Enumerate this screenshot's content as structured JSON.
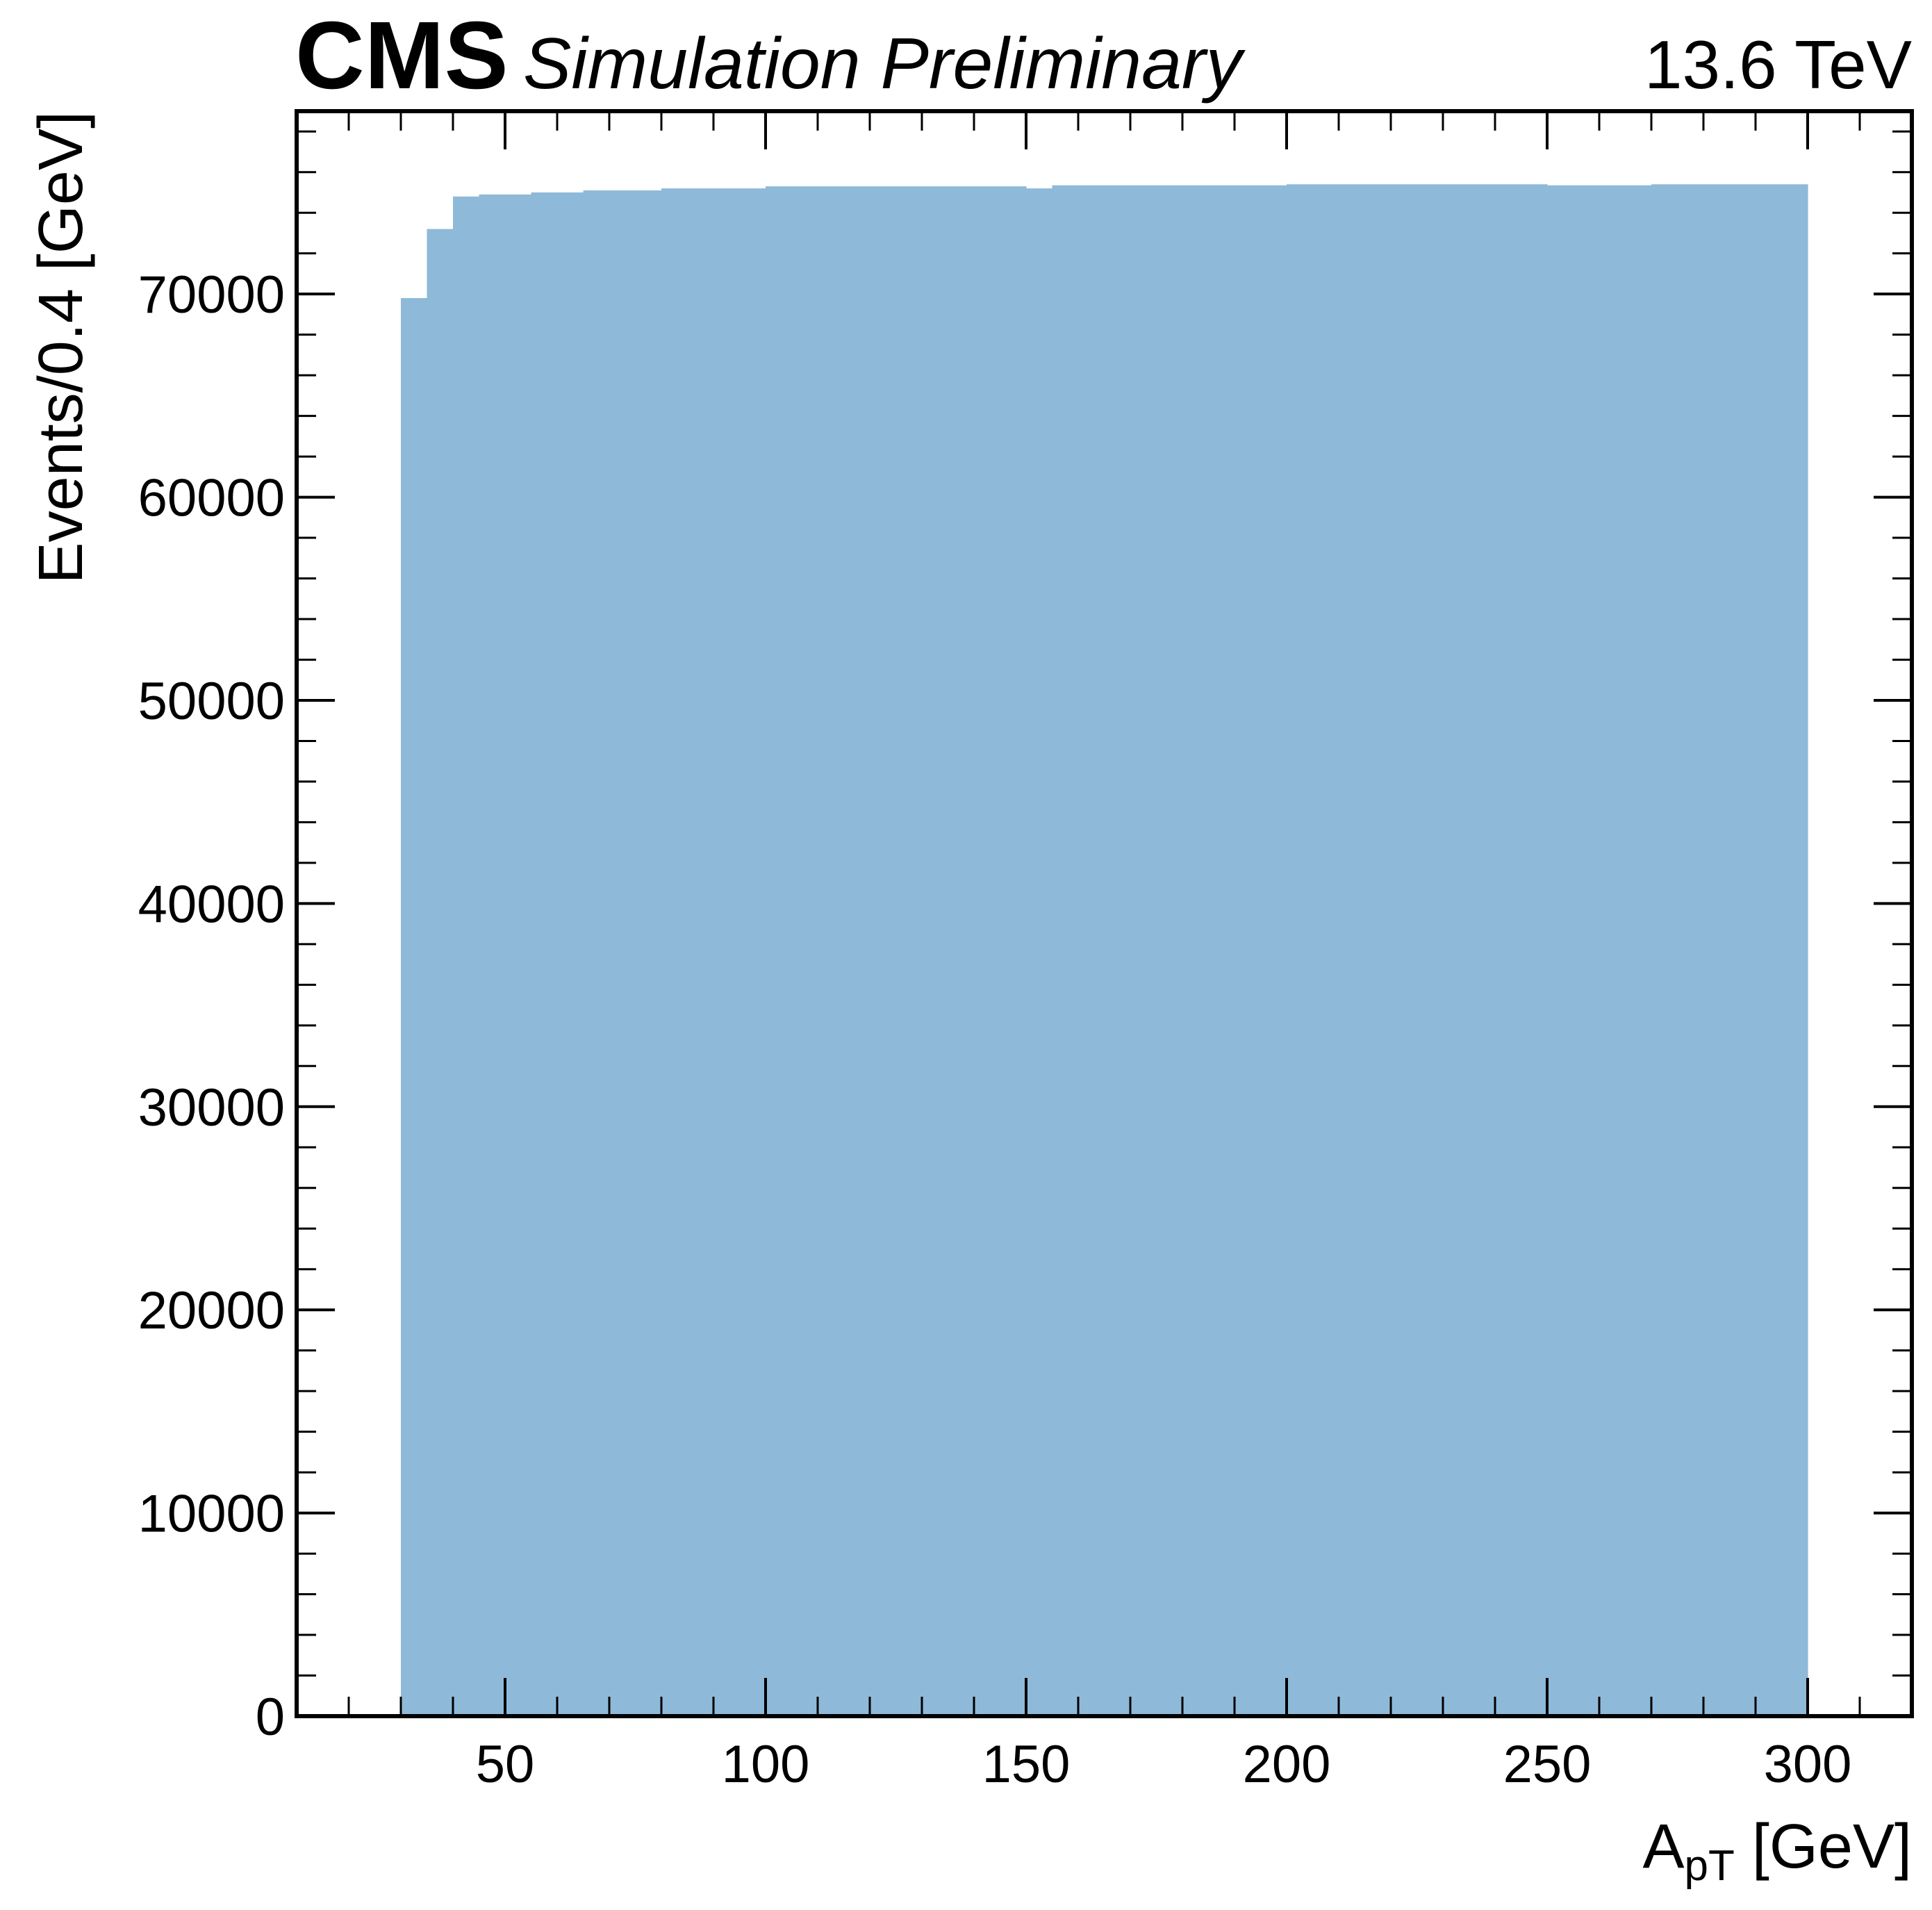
{
  "header": {
    "experiment": "CMS",
    "status": "Simulation Preliminary",
    "energy": "13.6 TeV"
  },
  "chart_data": {
    "type": "bar",
    "histogram_style": "filled step",
    "fill_color": "#8fb9d9",
    "ylabel": "Events/0.4 [GeV]",
    "xlabel_main": "A",
    "xlabel_sub": "pT",
    "xlabel_unit": " [GeV]",
    "xlim": [
      10,
      320
    ],
    "ylim": [
      0,
      79000
    ],
    "x_ticks": [
      50,
      100,
      150,
      200,
      250,
      300
    ],
    "y_ticks": [
      0,
      10000,
      20000,
      30000,
      40000,
      50000,
      60000,
      70000
    ],
    "x_minor_step": 10,
    "y_minor_step": 2000,
    "bins": [
      {
        "x0": 30,
        "x1": 35,
        "y": 69800
      },
      {
        "x0": 35,
        "x1": 40,
        "y": 73200
      },
      {
        "x0": 40,
        "x1": 45,
        "y": 74800
      },
      {
        "x0": 45,
        "x1": 55,
        "y": 74900
      },
      {
        "x0": 55,
        "x1": 65,
        "y": 75000
      },
      {
        "x0": 65,
        "x1": 80,
        "y": 75100
      },
      {
        "x0": 80,
        "x1": 100,
        "y": 75200
      },
      {
        "x0": 100,
        "x1": 150,
        "y": 75300
      },
      {
        "x0": 150,
        "x1": 155,
        "y": 75200
      },
      {
        "x0": 155,
        "x1": 200,
        "y": 75350
      },
      {
        "x0": 200,
        "x1": 250,
        "y": 75400
      },
      {
        "x0": 250,
        "x1": 270,
        "y": 75350
      },
      {
        "x0": 270,
        "x1": 300,
        "y": 75400
      }
    ]
  }
}
